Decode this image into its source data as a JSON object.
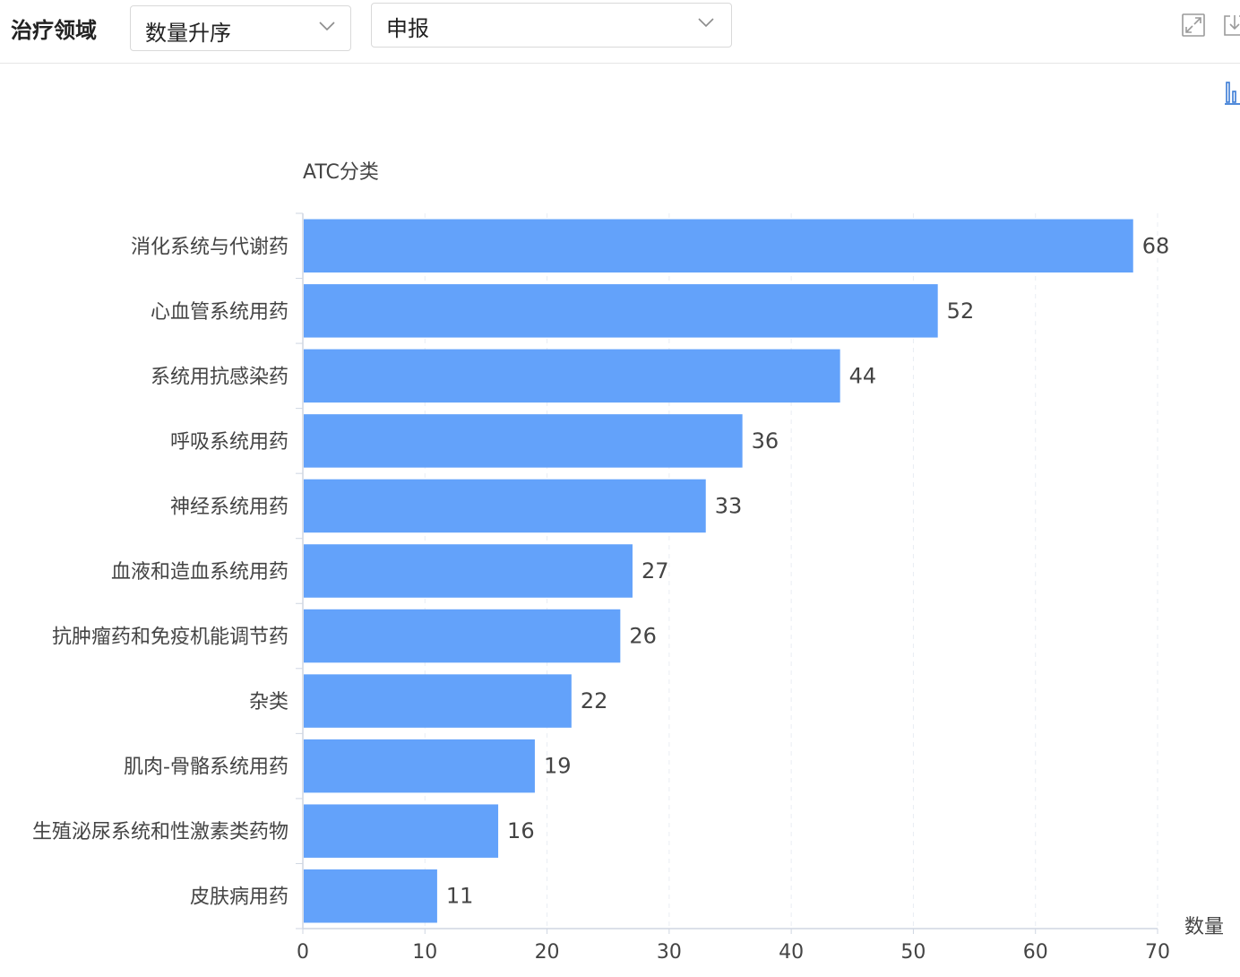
{
  "toolbar": {
    "title": "治疗领域",
    "sort_select": {
      "value": "数量升序"
    },
    "type_select": {
      "value": "申报"
    },
    "icons": [
      "expand-icon",
      "download-icon",
      "bar-chart-icon"
    ]
  },
  "colors": {
    "bar": "#63a2fa",
    "axis": "#cfd6e2",
    "grid": "#e9edf3",
    "label": "#444444"
  },
  "chart_data": {
    "type": "bar",
    "orientation": "horizontal",
    "y_axis_name": "ATC分类",
    "x_axis_name": "数量",
    "categories": [
      "消化系统与代谢药",
      "心血管系统用药",
      "系统用抗感染药",
      "呼吸系统用药",
      "神经系统用药",
      "血液和造血系统用药",
      "抗肿瘤药和免疫机能调节药",
      "杂类",
      "肌肉-骨骼系统用药",
      "生殖泌尿系统和性激素类药物",
      "皮肤病用药"
    ],
    "values": [
      68,
      52,
      44,
      36,
      33,
      27,
      26,
      22,
      19,
      16,
      11
    ],
    "xlim": [
      0,
      70
    ],
    "x_ticks": [
      0,
      10,
      20,
      30,
      40,
      50,
      60,
      70
    ],
    "grid": "vertical-dashed",
    "data_labels": true
  }
}
